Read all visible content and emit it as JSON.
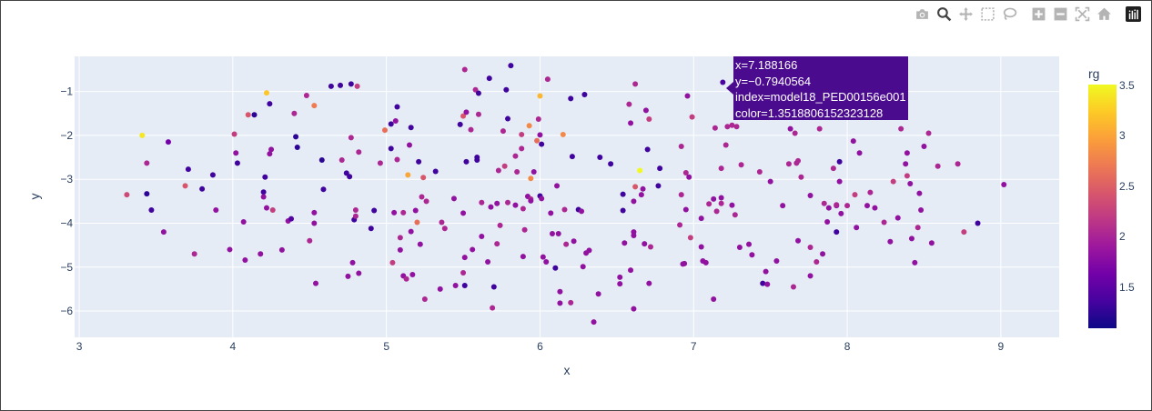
{
  "modebar": {
    "buttons": [
      {
        "name": "camera-icon",
        "title": "Download plot as a png"
      },
      {
        "name": "zoom-icon",
        "title": "Zoom"
      },
      {
        "name": "pan-icon",
        "title": "Pan"
      },
      {
        "name": "box-select-icon",
        "title": "Box Select"
      },
      {
        "name": "lasso-select-icon",
        "title": "Lasso Select"
      },
      {
        "name": "zoom-in-icon",
        "title": "Zoom in"
      },
      {
        "name": "zoom-out-icon",
        "title": "Zoom out"
      },
      {
        "name": "autoscale-icon",
        "title": "Autoscale"
      },
      {
        "name": "reset-axes-icon",
        "title": "Reset axes"
      },
      {
        "name": "plotly-logo-icon",
        "title": "Produced with Plotly"
      }
    ]
  },
  "tooltip": {
    "x_line": "x=7.188166",
    "y_line": "y=−0.7940564",
    "index_line": "index=model18_PED00156e001",
    "color_line": "color=1.3518806152323128"
  },
  "colorbar": {
    "title": "rg",
    "ticks": [
      "3.5",
      "3",
      "2.5",
      "2",
      "1.5"
    ],
    "range": [
      1.05,
      3.5
    ],
    "colorscale": [
      "#0d0887",
      "#46039f",
      "#7201a8",
      "#9c179e",
      "#bd3786",
      "#d8576b",
      "#ed7953",
      "#fb9f3a",
      "#fdca26",
      "#f0f921"
    ]
  },
  "chart_data": {
    "type": "scatter",
    "xlabel": "x",
    "ylabel": "y",
    "xlim": [
      2.97,
      9.38
    ],
    "ylim": [
      -6.6,
      -0.2
    ],
    "xticks": [
      "3",
      "4",
      "5",
      "6",
      "7",
      "8",
      "9"
    ],
    "yticks": [
      "−1",
      "−2",
      "−3",
      "−4",
      "−5",
      "−6"
    ],
    "points": [
      [
        3.31,
        -3.35,
        2.3
      ],
      [
        3.41,
        -2.0,
        3.4
      ],
      [
        3.44,
        -2.63,
        2.0
      ],
      [
        3.44,
        -3.33,
        1.2
      ],
      [
        3.47,
        -3.7,
        1.3
      ],
      [
        3.55,
        -4.2,
        1.8
      ],
      [
        3.58,
        -2.15,
        1.6
      ],
      [
        3.69,
        -3.15,
        2.4
      ],
      [
        3.71,
        -2.77,
        1.3
      ],
      [
        3.75,
        -4.7,
        2.0
      ],
      [
        3.8,
        -3.22,
        1.3
      ],
      [
        3.87,
        -2.9,
        1.3
      ],
      [
        3.89,
        -3.7,
        1.8
      ],
      [
        3.98,
        -4.6,
        1.8
      ],
      [
        4.01,
        -1.97,
        2.2
      ],
      [
        4.02,
        -2.4,
        1.8
      ],
      [
        4.03,
        -2.63,
        1.3
      ],
      [
        4.07,
        -3.97,
        1.8
      ],
      [
        4.08,
        -4.84,
        1.8
      ],
      [
        4.1,
        -1.53,
        2.4
      ],
      [
        4.14,
        -1.53,
        1.2
      ],
      [
        4.18,
        -4.7,
        1.8
      ],
      [
        4.2,
        -3.29,
        1.3
      ],
      [
        4.2,
        -3.4,
        1.8
      ],
      [
        4.21,
        -2.95,
        1.3
      ],
      [
        4.22,
        -3.65,
        1.8
      ],
      [
        4.22,
        -1.03,
        3.2
      ],
      [
        4.24,
        -1.28,
        1.3
      ],
      [
        4.24,
        -2.42,
        1.8
      ],
      [
        4.25,
        -2.32,
        1.8
      ],
      [
        4.26,
        -3.7,
        2.2
      ],
      [
        4.32,
        -4.61,
        1.8
      ],
      [
        4.36,
        -3.95,
        1.8
      ],
      [
        4.38,
        -3.9,
        1.4
      ],
      [
        4.4,
        -1.5,
        2.0
      ],
      [
        4.41,
        -2.03,
        1.2
      ],
      [
        4.42,
        -2.27,
        1.2
      ],
      [
        4.48,
        -1.09,
        2.0
      ],
      [
        4.5,
        -4.4,
        2.0
      ],
      [
        4.53,
        -1.32,
        2.7
      ],
      [
        4.53,
        -3.76,
        1.8
      ],
      [
        4.53,
        -4.0,
        1.8
      ],
      [
        4.54,
        -5.37,
        1.8
      ],
      [
        4.58,
        -2.56,
        1.2
      ],
      [
        4.59,
        -3.23,
        1.3
      ],
      [
        4.64,
        -0.88,
        1.3
      ],
      [
        4.7,
        -0.86,
        1.3
      ],
      [
        4.71,
        -2.56,
        2.0
      ],
      [
        4.74,
        -2.86,
        1.3
      ],
      [
        4.76,
        -2.94,
        1.3
      ],
      [
        4.75,
        -5.21,
        1.8
      ],
      [
        4.77,
        -2.05,
        2.0
      ],
      [
        4.77,
        -0.83,
        1.3
      ],
      [
        4.78,
        -4.9,
        1.8
      ],
      [
        4.79,
        -3.92,
        1.3
      ],
      [
        4.8,
        -3.7,
        2.0
      ],
      [
        4.8,
        -3.84,
        2.0
      ],
      [
        4.81,
        -0.88,
        2.2
      ],
      [
        4.82,
        -5.14,
        1.8
      ],
      [
        4.82,
        -2.38,
        2.0
      ],
      [
        4.9,
        -4.12,
        1.3
      ],
      [
        4.92,
        -3.71,
        1.3
      ],
      [
        4.96,
        -2.63,
        2.0
      ],
      [
        4.99,
        -1.88,
        2.6
      ],
      [
        5.03,
        -2.3,
        1.3
      ],
      [
        5.03,
        -1.74,
        1.3
      ],
      [
        5.04,
        -4.9,
        2.2
      ],
      [
        5.05,
        -3.76,
        1.8
      ],
      [
        5.06,
        -1.67,
        1.8
      ],
      [
        5.07,
        -1.35,
        1.3
      ],
      [
        5.07,
        -2.55,
        2.0
      ],
      [
        5.09,
        -4.33,
        2.0
      ],
      [
        5.09,
        -4.61,
        1.8
      ],
      [
        5.11,
        -3.76,
        2.0
      ],
      [
        5.11,
        -5.2,
        1.8
      ],
      [
        5.13,
        -5.27,
        2.0
      ],
      [
        5.14,
        -2.9,
        3.0
      ],
      [
        5.15,
        -2.22,
        1.8
      ],
      [
        5.16,
        -1.82,
        1.3
      ],
      [
        5.16,
        -4.19,
        1.8
      ],
      [
        5.17,
        -5.17,
        1.8
      ],
      [
        5.19,
        -3.71,
        1.8
      ],
      [
        5.2,
        -3.98,
        2.6
      ],
      [
        5.21,
        -2.6,
        1.3
      ],
      [
        5.22,
        -4.48,
        1.8
      ],
      [
        5.23,
        -3.4,
        2.0
      ],
      [
        5.24,
        -2.96,
        2.4
      ],
      [
        5.26,
        -3.5,
        2.0
      ],
      [
        5.25,
        -5.73,
        2.0
      ],
      [
        5.32,
        -2.82,
        1.3
      ],
      [
        5.35,
        -5.5,
        1.8
      ],
      [
        5.36,
        -3.98,
        2.0
      ],
      [
        5.38,
        -4.12,
        2.0
      ],
      [
        5.44,
        -3.44,
        1.8
      ],
      [
        5.45,
        -5.42,
        1.8
      ],
      [
        5.48,
        -1.75,
        1.3
      ],
      [
        5.5,
        -1.56,
        2.4
      ],
      [
        5.5,
        -5.13,
        2.0
      ],
      [
        5.5,
        -3.77,
        1.8
      ],
      [
        5.52,
        -2.6,
        1.3
      ],
      [
        5.51,
        -4.78,
        1.8
      ],
      [
        5.51,
        -5.42,
        1.3
      ],
      [
        5.52,
        -1.47,
        1.8
      ],
      [
        5.51,
        -0.5,
        2.0
      ],
      [
        5.55,
        -1.87,
        2.0
      ],
      [
        5.56,
        -4.6,
        1.8
      ],
      [
        5.58,
        -0.96,
        2.0
      ],
      [
        5.59,
        -2.56,
        1.3
      ],
      [
        5.59,
        -2.5,
        1.3
      ],
      [
        5.6,
        -1.04,
        1.3
      ],
      [
        5.6,
        -1.52,
        2.0
      ],
      [
        5.62,
        -3.53,
        2.0
      ],
      [
        5.62,
        -4.3,
        1.8
      ],
      [
        5.66,
        -4.88,
        1.8
      ],
      [
        5.67,
        -0.7,
        1.3
      ],
      [
        5.68,
        -3.63,
        1.8
      ],
      [
        5.69,
        -5.93,
        2.0
      ],
      [
        5.7,
        -5.45,
        1.3
      ],
      [
        5.72,
        -3.55,
        1.8
      ],
      [
        5.72,
        -4.47,
        2.0
      ],
      [
        5.73,
        -2.8,
        2.0
      ],
      [
        5.74,
        -4.05,
        2.0
      ],
      [
        5.76,
        -1.9,
        2.0
      ],
      [
        5.77,
        -2.7,
        2.2
      ],
      [
        5.78,
        -0.96,
        1.3
      ],
      [
        5.79,
        -3.53,
        2.0
      ],
      [
        5.79,
        -1.62,
        1.3
      ],
      [
        5.81,
        -0.41,
        1.3
      ],
      [
        5.84,
        -2.47,
        2.0
      ],
      [
        5.84,
        -3.59,
        1.8
      ],
      [
        5.85,
        -2.83,
        2.0
      ],
      [
        5.88,
        -2.3,
        2.0
      ],
      [
        5.88,
        -1.98,
        2.2
      ],
      [
        5.89,
        -4.76,
        1.8
      ],
      [
        5.89,
        -3.67,
        2.0
      ],
      [
        5.9,
        -4.15,
        2.0
      ],
      [
        5.92,
        -3.39,
        1.8
      ],
      [
        5.93,
        -1.78,
        2.8
      ],
      [
        5.94,
        -2.98,
        2.8
      ],
      [
        5.94,
        -3.45,
        2.0
      ],
      [
        5.94,
        -3.49,
        1.8
      ],
      [
        5.96,
        -2.83,
        1.8
      ],
      [
        5.98,
        -2.12,
        2.6
      ],
      [
        5.99,
        -1.63,
        2.0
      ],
      [
        6.0,
        -1.1,
        3.1
      ],
      [
        6.0,
        -3.38,
        1.3
      ],
      [
        6.01,
        -3.44,
        1.8
      ],
      [
        6.01,
        -2.2,
        1.3
      ],
      [
        6.0,
        -1.99,
        1.8
      ],
      [
        6.02,
        -4.77,
        1.8
      ],
      [
        6.05,
        -0.72,
        2.0
      ],
      [
        6.04,
        -4.88,
        1.8
      ],
      [
        6.07,
        -3.77,
        1.8
      ],
      [
        6.08,
        -4.24,
        1.8
      ],
      [
        6.1,
        -5.02,
        1.3
      ],
      [
        6.11,
        -3.15,
        1.8
      ],
      [
        6.12,
        -4.24,
        1.8
      ],
      [
        6.13,
        -5.56,
        1.8
      ],
      [
        6.13,
        -5.82,
        1.8
      ],
      [
        6.15,
        -1.98,
        2.8
      ],
      [
        6.16,
        -3.69,
        2.0
      ],
      [
        6.17,
        -4.48,
        2.0
      ],
      [
        6.2,
        -1.16,
        1.3
      ],
      [
        6.2,
        -5.81,
        2.0
      ],
      [
        6.21,
        -2.48,
        1.3
      ],
      [
        6.22,
        -4.41,
        1.8
      ],
      [
        6.25,
        -3.69,
        1.3
      ],
      [
        6.27,
        -3.73,
        1.8
      ],
      [
        6.28,
        -4.99,
        1.8
      ],
      [
        6.29,
        -1.07,
        1.3
      ],
      [
        6.3,
        -4.68,
        1.8
      ],
      [
        6.32,
        -4.62,
        1.8
      ],
      [
        6.35,
        -6.25,
        1.8
      ],
      [
        6.38,
        -5.61,
        1.8
      ],
      [
        6.39,
        -2.5,
        1.3
      ],
      [
        6.46,
        -2.65,
        1.3
      ],
      [
        6.52,
        -5.38,
        1.8
      ],
      [
        6.52,
        -5.23,
        1.8
      ],
      [
        6.54,
        -3.71,
        1.3
      ],
      [
        6.54,
        -3.34,
        1.3
      ],
      [
        6.55,
        -4.45,
        1.8
      ],
      [
        6.58,
        -1.29,
        2.0
      ],
      [
        6.59,
        -1.72,
        1.8
      ],
      [
        6.59,
        -5.07,
        1.8
      ],
      [
        6.61,
        -3.5,
        1.8
      ],
      [
        6.61,
        -4.28,
        1.8
      ],
      [
        6.61,
        -4.2,
        1.8
      ],
      [
        6.61,
        -5.95,
        1.8
      ],
      [
        6.62,
        -0.83,
        2.0
      ],
      [
        6.62,
        -3.17,
        2.4
      ],
      [
        6.65,
        -2.8,
        3.5
      ],
      [
        6.66,
        -3.35,
        1.8
      ],
      [
        6.67,
        -3.22,
        1.8
      ],
      [
        6.68,
        -4.47,
        1.8
      ],
      [
        6.69,
        -1.43,
        1.8
      ],
      [
        6.7,
        -2.32,
        1.3
      ],
      [
        6.71,
        -1.63,
        2.2
      ],
      [
        6.71,
        -5.37,
        1.8
      ],
      [
        6.72,
        -4.54,
        2.0
      ],
      [
        6.77,
        -3.15,
        1.3
      ],
      [
        6.78,
        -2.75,
        1.3
      ],
      [
        6.91,
        -4.04,
        2.0
      ],
      [
        6.92,
        -2.25,
        2.0
      ],
      [
        6.92,
        -3.35,
        2.0
      ],
      [
        6.93,
        -4.93,
        1.8
      ],
      [
        6.94,
        -4.92,
        1.8
      ],
      [
        6.95,
        -2.85,
        2.0
      ],
      [
        6.95,
        -3.69,
        1.8
      ],
      [
        6.96,
        -1.1,
        1.8
      ],
      [
        6.97,
        -2.95,
        1.8
      ],
      [
        6.98,
        -4.33,
        2.2
      ],
      [
        6.99,
        -1.58,
        2.2
      ],
      [
        7.05,
        -4.54,
        1.8
      ],
      [
        7.05,
        -3.89,
        1.8
      ],
      [
        7.06,
        -4.86,
        1.8
      ],
      [
        7.08,
        -4.9,
        1.8
      ],
      [
        7.1,
        -3.56,
        2.0
      ],
      [
        7.13,
        -5.73,
        1.8
      ],
      [
        7.13,
        -3.45,
        1.8
      ],
      [
        7.14,
        -1.83,
        2.0
      ],
      [
        7.15,
        -3.73,
        2.0
      ],
      [
        7.19,
        -0.79,
        1.35
      ],
      [
        7.18,
        -3.42,
        1.8
      ],
      [
        7.18,
        -3.55,
        2.0
      ],
      [
        7.18,
        -2.75,
        2.0
      ],
      [
        7.21,
        -2.22,
        2.0
      ],
      [
        7.22,
        -1.8,
        2.0
      ],
      [
        7.25,
        -1.77,
        2.0
      ],
      [
        7.25,
        -3.59,
        1.8
      ],
      [
        7.27,
        -3.81,
        2.0
      ],
      [
        7.28,
        -1.8,
        2.0
      ],
      [
        7.3,
        -4.55,
        1.8
      ],
      [
        7.31,
        -2.67,
        2.0
      ],
      [
        7.36,
        -4.48,
        1.8
      ],
      [
        7.38,
        -4.72,
        1.8
      ],
      [
        7.43,
        -2.83,
        2.0
      ],
      [
        7.45,
        -5.37,
        1.3
      ],
      [
        7.46,
        -1.47,
        2.0
      ],
      [
        7.47,
        -5.1,
        1.8
      ],
      [
        7.48,
        -5.39,
        1.8
      ],
      [
        7.5,
        -1.58,
        1.8
      ],
      [
        7.5,
        -3.05,
        1.8
      ],
      [
        7.54,
        -4.86,
        1.8
      ],
      [
        7.58,
        -3.6,
        1.8
      ],
      [
        7.62,
        -2.65,
        2.0
      ],
      [
        7.63,
        -1.85,
        1.8
      ],
      [
        7.65,
        -5.45,
        2.0
      ],
      [
        7.66,
        -1.95,
        2.0
      ],
      [
        7.67,
        -2.63,
        2.0
      ],
      [
        7.68,
        -2.58,
        2.0
      ],
      [
        7.68,
        -4.4,
        1.8
      ],
      [
        7.7,
        -2.95,
        2.0
      ],
      [
        7.76,
        -5.2,
        1.8
      ],
      [
        7.76,
        -4.55,
        2.0
      ],
      [
        7.76,
        -3.37,
        1.8
      ],
      [
        7.78,
        -1.45,
        2.0
      ],
      [
        7.8,
        -4.88,
        2.0
      ],
      [
        7.82,
        -1.85,
        2.0
      ],
      [
        7.84,
        -4.7,
        1.8
      ],
      [
        7.85,
        -3.55,
        2.0
      ],
      [
        7.87,
        -3.97,
        1.8
      ],
      [
        7.88,
        -3.65,
        1.8
      ],
      [
        7.91,
        -2.75,
        2.0
      ],
      [
        7.93,
        -3.6,
        1.8
      ],
      [
        7.93,
        -3.58,
        2.0
      ],
      [
        7.95,
        -2.6,
        1.3
      ],
      [
        7.93,
        -4.2,
        1.3
      ],
      [
        7.95,
        -3.05,
        1.8
      ],
      [
        7.96,
        -3.78,
        1.8
      ],
      [
        8.0,
        -3.6,
        2.0
      ],
      [
        8.04,
        -2.13,
        1.8
      ],
      [
        8.05,
        -3.35,
        2.2
      ],
      [
        8.06,
        -4.1,
        1.8
      ],
      [
        8.08,
        -2.4,
        1.8
      ],
      [
        8.13,
        -3.6,
        1.8
      ],
      [
        8.15,
        -3.3,
        2.0
      ],
      [
        8.18,
        -3.65,
        1.8
      ],
      [
        8.24,
        -3.98,
        2.0
      ],
      [
        8.28,
        -4.42,
        1.8
      ],
      [
        8.3,
        -3.05,
        2.2
      ],
      [
        8.33,
        -3.88,
        1.8
      ],
      [
        8.35,
        -1.85,
        2.0
      ],
      [
        8.38,
        -2.65,
        1.8
      ],
      [
        8.39,
        -2.4,
        1.8
      ],
      [
        8.39,
        -2.92,
        2.2
      ],
      [
        8.41,
        -3.1,
        1.8
      ],
      [
        8.42,
        -4.35,
        1.8
      ],
      [
        8.44,
        -4.9,
        1.8
      ],
      [
        8.46,
        -4.1,
        2.0
      ],
      [
        8.47,
        -3.32,
        1.8
      ],
      [
        8.48,
        -3.7,
        1.8
      ],
      [
        8.5,
        -2.25,
        1.8
      ],
      [
        8.53,
        -1.95,
        2.0
      ],
      [
        8.55,
        -4.45,
        1.8
      ],
      [
        8.59,
        -2.7,
        2.0
      ],
      [
        8.72,
        -2.65,
        2.0
      ],
      [
        8.76,
        -4.2,
        2.2
      ],
      [
        8.85,
        -4.0,
        1.3
      ],
      [
        9.02,
        -3.12,
        1.8
      ]
    ]
  }
}
